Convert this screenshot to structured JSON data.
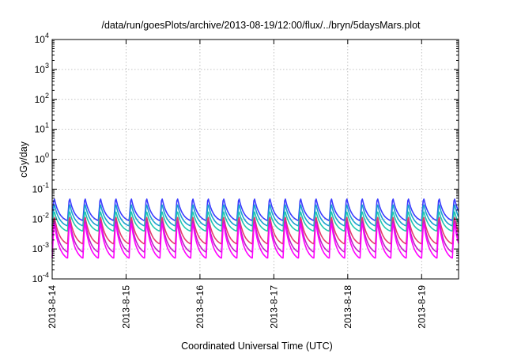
{
  "chart_data": {
    "type": "line",
    "title": "/data/run/goesPlots/archive/2013-08-19/12:00/flux/../bryn/5daysMars.plot",
    "xlabel": "Coordinated Universal Time (UTC)",
    "ylabel": "cGy/day",
    "yscale": "log",
    "ylim": [
      0.0001,
      10000
    ],
    "y_ticks": [
      {
        "base": "10",
        "exp": "-4"
      },
      {
        "base": "10",
        "exp": "-3"
      },
      {
        "base": "10",
        "exp": "-2"
      },
      {
        "base": "10",
        "exp": "-1"
      },
      {
        "base": "10",
        "exp": "0"
      },
      {
        "base": "10",
        "exp": "1"
      },
      {
        "base": "10",
        "exp": "2"
      },
      {
        "base": "10",
        "exp": "3"
      },
      {
        "base": "10",
        "exp": "4"
      }
    ],
    "xlim": [
      "2013-8-14",
      "2013-8-19 12:00"
    ],
    "x_ticks": [
      "2013-8-14",
      "2013-8-15",
      "2013-8-16",
      "2013-8-17",
      "2013-8-18",
      "2013-8-19"
    ],
    "grid": true,
    "cycle_hours": 5,
    "series": [
      {
        "color": "#3b3bff",
        "peak": 0.055,
        "trough": 0.009
      },
      {
        "color": "#1aa0d0",
        "peak": 0.035,
        "trough": 0.006
      },
      {
        "color": "#20c8b0",
        "peak": 0.02,
        "trough": 0.004
      },
      {
        "color": "#e63c6e",
        "peak": 0.014,
        "trough": 0.0015
      },
      {
        "color": "#c020c8",
        "peak": 0.011,
        "trough": 0.0008
      },
      {
        "color": "#ff00ff",
        "peak": 0.009,
        "trough": 0.0005
      }
    ]
  }
}
